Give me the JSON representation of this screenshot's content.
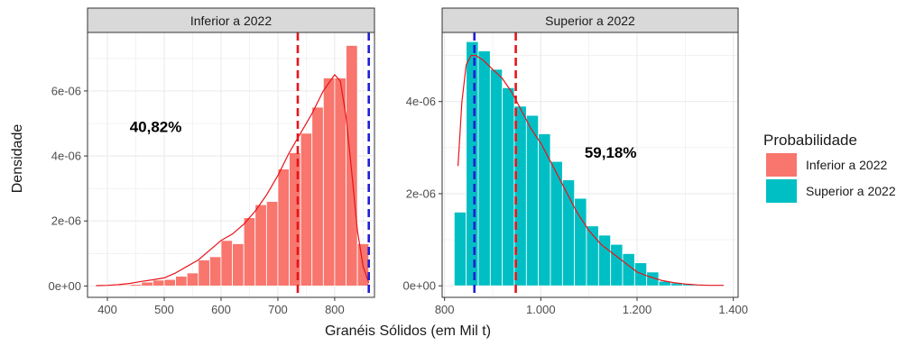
{
  "chart_data": {
    "type": "histogram",
    "xlabel": "Granéis Sólidos (em Mil t)",
    "ylabel": "Densidade",
    "legend": {
      "title": "Probabilidade",
      "placement": "right",
      "items": [
        {
          "label": "Inferior a 2022",
          "color": "#F8766D"
        },
        {
          "label": "Superior a 2022",
          "color": "#00BFC4"
        }
      ]
    },
    "density_line_color": "#E8141B",
    "panels": [
      {
        "strip": "Inferior a 2022",
        "fill": "#F8766D",
        "xlim": [
          365,
          870
        ],
        "ylim": [
          -3.5e-07,
          7.8e-06
        ],
        "xticks": [
          400,
          500,
          600,
          700,
          800
        ],
        "xtick_labels": [
          "400",
          "500",
          "600",
          "700",
          "800"
        ],
        "yticks": [
          0,
          2e-06,
          4e-06,
          6e-06
        ],
        "ytick_labels": [
          "0e+00",
          "2e-06",
          "4e-06",
          "6e-06"
        ],
        "bins": {
          "start": 380,
          "width": 20,
          "density": [
            2e-08,
            2e-08,
            3e-08,
            5e-08,
            1.2e-07,
            1.8e-07,
            2e-07,
            3e-07,
            4e-07,
            8e-07,
            9e-07,
            1.4e-06,
            1.3e-06,
            2.1e-06,
            2.5e-06,
            2.6e-06,
            3.6e-06,
            4.1e-06,
            4.7e-06,
            5.5e-06,
            6.4e-06,
            6.4e-06,
            7.4e-06,
            1.3e-06
          ]
        },
        "density_curve": {
          "x": [
            380,
            400,
            420,
            440,
            460,
            480,
            500,
            520,
            540,
            560,
            580,
            600,
            620,
            640,
            660,
            680,
            700,
            720,
            740,
            760,
            780,
            800,
            810,
            820,
            830,
            840,
            850,
            860
          ],
          "y": [
            1e-08,
            2e-08,
            4e-08,
            8e-08,
            1.4e-07,
            1.9e-07,
            2.5e-07,
            4e-07,
            6e-07,
            8e-07,
            1.1e-06,
            1.4e-06,
            1.6e-06,
            1.9e-06,
            2.3e-06,
            2.8e-06,
            3.4e-06,
            4.1e-06,
            4.7e-06,
            5.3e-06,
            6e-06,
            6.5e-06,
            6.3e-06,
            5.2e-06,
            3.5e-06,
            1.7e-06,
            6e-07,
            1e-07
          ]
        },
        "vlines": [
          {
            "x": 735,
            "color": "#E8141B"
          },
          {
            "x": 860,
            "color": "#1F1FD6"
          }
        ],
        "annotation": {
          "text": "40,82%",
          "x": 485,
          "y": 4.9e-06
        }
      },
      {
        "strip": "Superior a 2022",
        "fill": "#00BFC4",
        "xlim": [
          795,
          1410
        ],
        "ylim": [
          -2.5e-07,
          5.5e-06
        ],
        "xticks": [
          800,
          1000,
          1200,
          1400
        ],
        "xtick_labels": [
          "800",
          "1.000",
          "1.200",
          "1.400"
        ],
        "yticks": [
          0,
          2e-06,
          4e-06
        ],
        "ytick_labels": [
          "0e+00",
          "2e-06",
          "4e-06"
        ],
        "bins": {
          "start": 820,
          "width": 25,
          "density": [
            1.6e-06,
            5.3e-06,
            5.1e-06,
            4.7e-06,
            4.3e-06,
            3.9e-06,
            3.7e-06,
            3.3e-06,
            2.7e-06,
            2.3e-06,
            1.9e-06,
            1.3e-06,
            1.1e-06,
            9e-07,
            7e-07,
            5e-07,
            3e-07,
            1e-07,
            6e-08,
            4e-08,
            3e-08,
            2e-08,
            1e-08,
            1e-08
          ]
        },
        "density_curve": {
          "x": [
            828,
            836,
            845,
            855,
            865,
            880,
            900,
            920,
            940,
            960,
            980,
            1000,
            1025,
            1050,
            1075,
            1100,
            1125,
            1150,
            1175,
            1200,
            1225,
            1250,
            1275,
            1300,
            1325,
            1350,
            1380
          ],
          "y": [
            2.6e-06,
            4e-06,
            4.8e-06,
            5e-06,
            5e-06,
            4.9e-06,
            4.7e-06,
            4.5e-06,
            4.2e-06,
            3.8e-06,
            3.4e-06,
            3.1e-06,
            2.6e-06,
            2.1e-06,
            1.6e-06,
            1.2e-06,
            9e-07,
            7e-07,
            5e-07,
            3e-07,
            2e-07,
            1.2e-07,
            7e-08,
            4e-08,
            2e-08,
            1e-08,
            1e-08
          ]
        },
        "vlines": [
          {
            "x": 862,
            "color": "#1F1FD6"
          },
          {
            "x": 948,
            "color": "#E8141B"
          }
        ],
        "annotation": {
          "text": "59,18%",
          "x": 1145,
          "y": 2.9e-06
        }
      }
    ]
  }
}
